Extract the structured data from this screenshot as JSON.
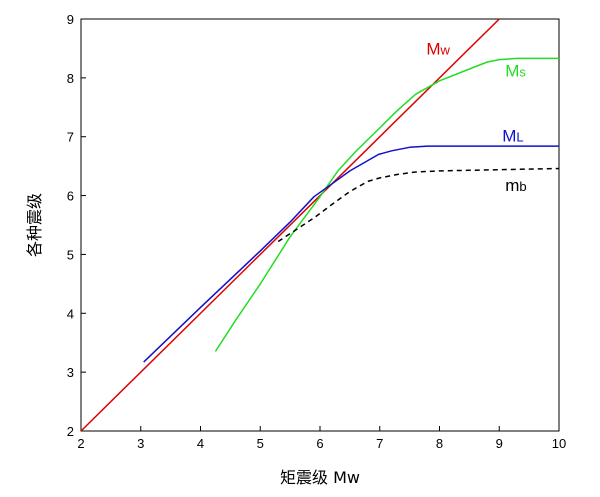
{
  "chart_data": {
    "type": "line",
    "title": "",
    "xlabel": "矩震级 Mw",
    "ylabel": "各种震级",
    "xlim": [
      2,
      10
    ],
    "ylim": [
      2,
      9
    ],
    "xticks": [
      2,
      3,
      4,
      5,
      6,
      7,
      8,
      9,
      10
    ],
    "yticks": [
      2,
      3,
      4,
      5,
      6,
      7,
      8,
      9
    ],
    "grid": false,
    "series": [
      {
        "name": "Mw",
        "label_main": "M",
        "label_sub": "w",
        "color": "#dd0000",
        "dash": "solid",
        "x": [
          2.0,
          9.0
        ],
        "y": [
          2.0,
          9.0
        ],
        "label_at": [
          7.78,
          8.4
        ]
      },
      {
        "name": "Ms",
        "label_main": "M",
        "label_sub": "s",
        "color": "#22dd22",
        "dash": "solid",
        "x": [
          4.25,
          4.6,
          5.0,
          5.5,
          6.0,
          6.3,
          6.6,
          7.0,
          7.3,
          7.6,
          8.0,
          8.5,
          8.8,
          9.0,
          9.3,
          10.0
        ],
        "y": [
          3.35,
          3.9,
          4.5,
          5.3,
          5.98,
          6.42,
          6.75,
          7.15,
          7.45,
          7.72,
          7.95,
          8.15,
          8.27,
          8.31,
          8.33,
          8.33
        ],
        "label_at": [
          9.1,
          8.02
        ]
      },
      {
        "name": "ML",
        "label_main": "M",
        "label_sub": "L",
        "color": "#1010cc",
        "dash": "solid",
        "x": [
          3.05,
          4.0,
          5.0,
          5.5,
          5.9,
          6.2,
          6.5,
          6.98,
          7.2,
          7.5,
          7.8,
          8.5,
          10.0
        ],
        "y": [
          3.17,
          4.1,
          5.06,
          5.55,
          5.98,
          6.2,
          6.42,
          6.7,
          6.76,
          6.82,
          6.84,
          6.84,
          6.84
        ],
        "label_at": [
          9.05,
          6.92
        ]
      },
      {
        "name": "mb",
        "label_main": "m",
        "label_sub": "b",
        "color": "#000000",
        "dash": "dashed",
        "x": [
          5.3,
          5.6,
          5.9,
          6.2,
          6.5,
          6.8,
          7.0,
          7.3,
          7.6,
          8.0,
          8.5,
          9.0,
          9.5,
          10.0
        ],
        "y": [
          5.22,
          5.42,
          5.62,
          5.85,
          6.07,
          6.24,
          6.3,
          6.36,
          6.4,
          6.42,
          6.43,
          6.44,
          6.45,
          6.46
        ],
        "label_at": [
          9.1,
          6.08
        ]
      }
    ]
  }
}
